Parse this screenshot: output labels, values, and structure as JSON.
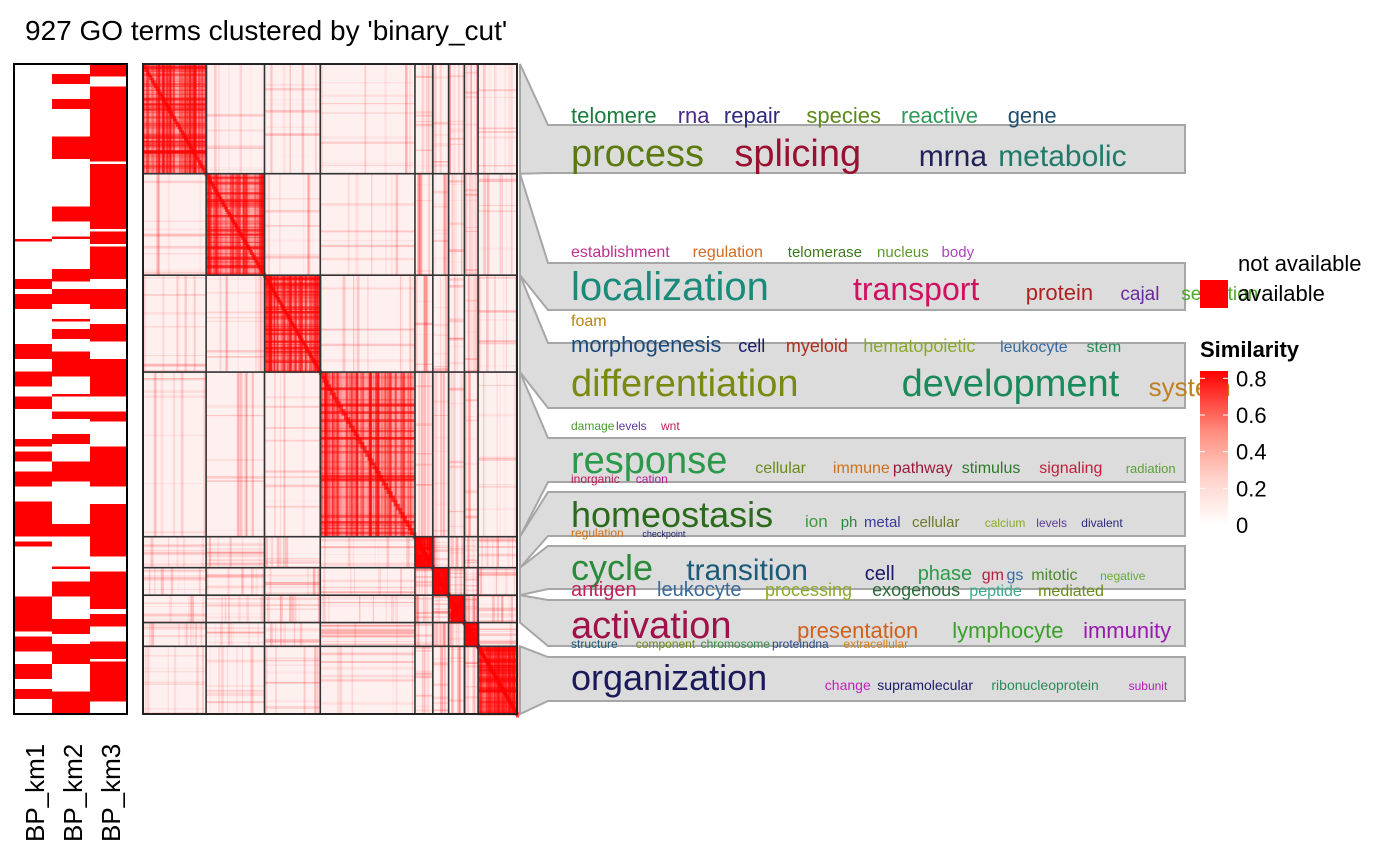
{
  "title": "927 GO terms clustered by 'binary_cut'",
  "annotation_columns": [
    "BP_km1",
    "BP_km2",
    "BP_km3"
  ],
  "legend_availability": {
    "items": [
      "not available",
      "available"
    ],
    "colors": [
      "#ffffff",
      "#ff0000"
    ]
  },
  "legend_similarity": {
    "title": "Similarity",
    "ticks": [
      "0.8",
      "0.6",
      "0.4",
      "0.2",
      "0"
    ],
    "tick_values": [
      0.8,
      0.6,
      0.4,
      0.2,
      0
    ],
    "color_low": "#ffffff",
    "color_high": "#ff0000"
  },
  "chart_data": {
    "type": "heatmap",
    "n_terms": 927,
    "method": "binary_cut",
    "clusters": [
      {
        "start": 0,
        "size": 240
      },
      {
        "start": 240,
        "size": 222
      },
      {
        "start": 462,
        "size": 212
      },
      {
        "start": 674,
        "size": 360
      },
      {
        "start": 1034,
        "size": 68
      },
      {
        "start": 1102,
        "size": 60
      },
      {
        "start": 1162,
        "size": 60
      },
      {
        "start": 1222,
        "size": 52
      },
      {
        "start": 1274,
        "size": 148
      }
    ],
    "wordclouds": [
      {
        "cluster": 1,
        "words": [
          {
            "t": "telomere",
            "s": 22,
            "c": "#1b7a3e"
          },
          {
            "t": "rna",
            "s": 22,
            "c": "#4b2a8a"
          },
          {
            "t": "repair",
            "s": 22,
            "c": "#2c2c7a"
          },
          {
            "t": "species",
            "s": 22,
            "c": "#5a8a1a"
          },
          {
            "t": "reactive",
            "s": 22,
            "c": "#2e9a5a"
          },
          {
            "t": "gene",
            "s": 22,
            "c": "#1f4e6e"
          },
          {
            "t": "process",
            "s": 38,
            "c": "#5a7a10",
            "row": 2
          },
          {
            "t": "splicing",
            "s": 38,
            "c": "#9a1030",
            "row": 2
          },
          {
            "t": "mrna",
            "s": 30,
            "c": "#20205a",
            "row": 2
          },
          {
            "t": "metabolic",
            "s": 30,
            "c": "#1f7a6a",
            "row": 2
          }
        ]
      },
      {
        "cluster": 2,
        "words": [
          {
            "t": "establishment",
            "s": 16,
            "c": "#c0308a"
          },
          {
            "t": "regulation",
            "s": 16,
            "c": "#d2691e"
          },
          {
            "t": "telomerase",
            "s": 15,
            "c": "#3a7a1a"
          },
          {
            "t": "nucleus",
            "s": 15,
            "c": "#5a9a2a"
          },
          {
            "t": "body",
            "s": 15,
            "c": "#b040c0"
          },
          {
            "t": "localization",
            "s": 40,
            "c": "#1a8a7a",
            "row": 2
          },
          {
            "t": "transport",
            "s": 32,
            "c": "#d01060",
            "row": 2
          },
          {
            "t": "protein",
            "s": 22,
            "c": "#b02020",
            "row": 2
          },
          {
            "t": "cajal",
            "s": 19,
            "c": "#6a2aa0",
            "row": 2
          },
          {
            "t": "secretion",
            "s": 19,
            "c": "#4aaa2a",
            "row": 2
          },
          {
            "t": "foam",
            "s": 16,
            "c": "#b8860b",
            "row": 3
          }
        ]
      },
      {
        "cluster": 3,
        "words": [
          {
            "t": "morphogenesis",
            "s": 22,
            "c": "#1a4a7a"
          },
          {
            "t": "cell",
            "s": 18,
            "c": "#1a1a6a"
          },
          {
            "t": "myeloid",
            "s": 18,
            "c": "#b03020"
          },
          {
            "t": "hematopoietic",
            "s": 18,
            "c": "#8aaa2a"
          },
          {
            "t": "leukocyte",
            "s": 16,
            "c": "#3a6aa0"
          },
          {
            "t": "stem",
            "s": 16,
            "c": "#2a8a5a"
          },
          {
            "t": "differentiation",
            "s": 38,
            "c": "#7a8a10",
            "row": 2
          },
          {
            "t": "development",
            "s": 38,
            "c": "#1a8a5a",
            "row": 2
          },
          {
            "t": "system",
            "s": 26,
            "c": "#c08020",
            "row": 2
          }
        ]
      },
      {
        "cluster": 4,
        "words": [
          {
            "t": "damage",
            "s": 12,
            "c": "#4a9a2a"
          },
          {
            "t": "levels",
            "s": 12,
            "c": "#5a3a9a"
          },
          {
            "t": "wnt",
            "s": 12,
            "c": "#c0205a"
          },
          {
            "t": "response",
            "s": 38,
            "c": "#2a9a4a",
            "row": 2
          },
          {
            "t": "cellular",
            "s": 16,
            "c": "#6a8a1a",
            "row": 2
          },
          {
            "t": "immune",
            "s": 16,
            "c": "#d0701a",
            "row": 2
          },
          {
            "t": "pathway",
            "s": 16,
            "c": "#9a1a3a",
            "row": 2
          },
          {
            "t": "stimulus",
            "s": 16,
            "c": "#2a7a2a",
            "row": 2
          },
          {
            "t": "signaling",
            "s": 16,
            "c": "#c0203a",
            "row": 2
          },
          {
            "t": "radiation",
            "s": 13,
            "c": "#5aa03a",
            "row": 2
          }
        ]
      },
      {
        "cluster": 5,
        "words": [
          {
            "t": "inorganic",
            "s": 12,
            "c": "#b0205a"
          },
          {
            "t": "cation",
            "s": 12,
            "c": "#b0209a"
          },
          {
            "t": "homeostasis",
            "s": 36,
            "c": "#2a6a1a",
            "row": 2
          },
          {
            "t": "ion",
            "s": 17,
            "c": "#3a9a3a",
            "row": 2
          },
          {
            "t": "ph",
            "s": 15,
            "c": "#2a8a3a",
            "row": 2
          },
          {
            "t": "metal",
            "s": 15,
            "c": "#3a3a9a",
            "row": 2
          },
          {
            "t": "cellular",
            "s": 15,
            "c": "#6a7a2a",
            "row": 2
          },
          {
            "t": "calcium",
            "s": 12,
            "c": "#8aaa2a",
            "row": 2
          },
          {
            "t": "levels",
            "s": 12,
            "c": "#5a3a9a",
            "row": 2
          },
          {
            "t": "divalent",
            "s": 12,
            "c": "#2a2a7a",
            "row": 2
          }
        ]
      },
      {
        "cluster": 6,
        "words": [
          {
            "t": "regulation",
            "s": 12,
            "c": "#d0701a"
          },
          {
            "t": "checkpoint",
            "s": 9,
            "c": "#1a1a6a"
          },
          {
            "t": "cycle",
            "s": 36,
            "c": "#2a8a3a",
            "row": 2
          },
          {
            "t": "transition",
            "s": 30,
            "c": "#1a5a7a",
            "row": 2
          },
          {
            "t": "cell",
            "s": 20,
            "c": "#1a1a6a",
            "row": 2
          },
          {
            "t": "phase",
            "s": 20,
            "c": "#2a9a4a",
            "row": 2
          },
          {
            "t": "gm",
            "s": 16,
            "c": "#b02040",
            "row": 2
          },
          {
            "t": "gs",
            "s": 16,
            "c": "#3a6a9a",
            "row": 2
          },
          {
            "t": "mitotic",
            "s": 16,
            "c": "#4a8a2a",
            "row": 2
          },
          {
            "t": "negative",
            "s": 12,
            "c": "#6aaa3a",
            "row": 2
          }
        ]
      },
      {
        "cluster": 7,
        "words": [
          {
            "t": "antigen",
            "s": 20,
            "c": "#c0205a"
          },
          {
            "t": "leukocyte",
            "s": 20,
            "c": "#3a6a9a"
          },
          {
            "t": "processing",
            "s": 18,
            "c": "#8aaa2a"
          },
          {
            "t": "exogenous",
            "s": 18,
            "c": "#2a6a3a"
          },
          {
            "t": "peptide",
            "s": 16,
            "c": "#3aaa8a"
          },
          {
            "t": "mediated",
            "s": 16,
            "c": "#6a8a1a"
          },
          {
            "t": "activation",
            "s": 38,
            "c": "#a0104a",
            "row": 2
          },
          {
            "t": "presentation",
            "s": 22,
            "c": "#d0601a",
            "row": 2
          },
          {
            "t": "lymphocyte",
            "s": 22,
            "c": "#3aa02a",
            "row": 2
          },
          {
            "t": "immunity",
            "s": 22,
            "c": "#9a1ab0",
            "row": 2
          }
        ]
      },
      {
        "cluster": 8,
        "words": [
          {
            "t": "structure",
            "s": 12,
            "c": "#1a5a7a"
          },
          {
            "t": "component",
            "s": 12,
            "c": "#6a8a1a"
          },
          {
            "t": "chromosome",
            "s": 12,
            "c": "#3a8a4a"
          },
          {
            "t": "proteindna",
            "s": 12,
            "c": "#2a4a8a"
          },
          {
            "t": "extracellular",
            "s": 12,
            "c": "#d08020"
          }
        ]
      },
      {
        "cluster": 9,
        "words": [
          {
            "t": "organization",
            "s": 36,
            "c": "#1a1a5a"
          },
          {
            "t": "change",
            "s": 14,
            "c": "#c020c0"
          },
          {
            "t": "supramolecular",
            "s": 14,
            "c": "#1a1a6a"
          },
          {
            "t": "ribonucleoprotein",
            "s": 14,
            "c": "#2a8a5a"
          },
          {
            "t": "subunit",
            "s": 12,
            "c": "#b020b0"
          }
        ]
      }
    ]
  }
}
